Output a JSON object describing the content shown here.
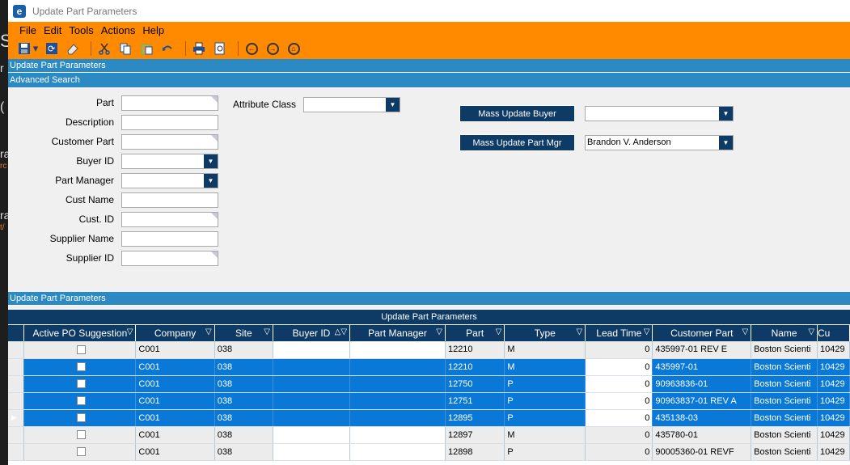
{
  "window": {
    "title": "Update Part Parameters",
    "app_icon": "e"
  },
  "menu": [
    "File",
    "Edit",
    "Tools",
    "Actions",
    "Help"
  ],
  "toolbar_icons": [
    "save-icon",
    "refresh-icon",
    "clear-icon",
    "cut-icon",
    "copy-icon",
    "paste-icon",
    "undo-icon",
    "print-icon",
    "print-preview-icon",
    "back-icon",
    "forward-icon",
    "home-icon"
  ],
  "sections": {
    "top": "Update Part Parameters",
    "search": "Advanced Search",
    "grid": "Update Part Parameters"
  },
  "form": {
    "part": "Part",
    "description": "Description",
    "customer_part": "Customer Part",
    "buyer_id": "Buyer ID",
    "part_manager": "Part Manager",
    "cust_name": "Cust Name",
    "cust_id": "Cust. ID",
    "supplier_name": "Supplier Name",
    "supplier_id": "Supplier ID",
    "attribute_class": "Attribute Class",
    "mass_update_buyer": "Mass Update Buyer",
    "mass_update_part_mgr": "Mass Update Part Mgr",
    "part_mgr_value": "Brandon V. Anderson"
  },
  "grid": {
    "title": "Update Part Parameters",
    "columns": [
      "Active PO Suggestion",
      "Company",
      "Site",
      "Buyer ID",
      "Part Manager",
      "Part",
      "Type",
      "Lead Time",
      "Customer Part",
      "Name",
      "Cu"
    ],
    "rows": [
      {
        "company": "C001",
        "site": "038",
        "part": "12210",
        "type": "M",
        "lead": "0",
        "custpart": "435997-01 REV E",
        "name": "Boston Scienti",
        "cu": "10429"
      },
      {
        "company": "C001",
        "site": "038",
        "part": "12210",
        "type": "M",
        "lead": "0",
        "custpart": "435997-01",
        "name": "Boston Scienti",
        "cu": "10429"
      },
      {
        "company": "C001",
        "site": "038",
        "part": "12750",
        "type": "P",
        "lead": "0",
        "custpart": "90963836-01",
        "name": "Boston Scienti",
        "cu": "10429"
      },
      {
        "company": "C001",
        "site": "038",
        "part": "12751",
        "type": "P",
        "lead": "0",
        "custpart": "90963837-01 REV A",
        "name": "Boston Scienti",
        "cu": "10429"
      },
      {
        "company": "C001",
        "site": "038",
        "part": "12895",
        "type": "P",
        "lead": "0",
        "custpart": "435138-03",
        "name": "Boston Scienti",
        "cu": "10429"
      },
      {
        "company": "C001",
        "site": "038",
        "part": "12897",
        "type": "M",
        "lead": "0",
        "custpart": "435780-01",
        "name": "Boston Scienti",
        "cu": "10429"
      },
      {
        "company": "C001",
        "site": "038",
        "part": "12898",
        "type": "P",
        "lead": "0",
        "custpart": "90005360-01 REVF",
        "name": "Boston Scienti",
        "cu": "10429"
      }
    ]
  },
  "left_strip_text": [
    "S",
    "r",
    "(",
    "ra",
    "rc",
    "ra",
    "t/"
  ]
}
